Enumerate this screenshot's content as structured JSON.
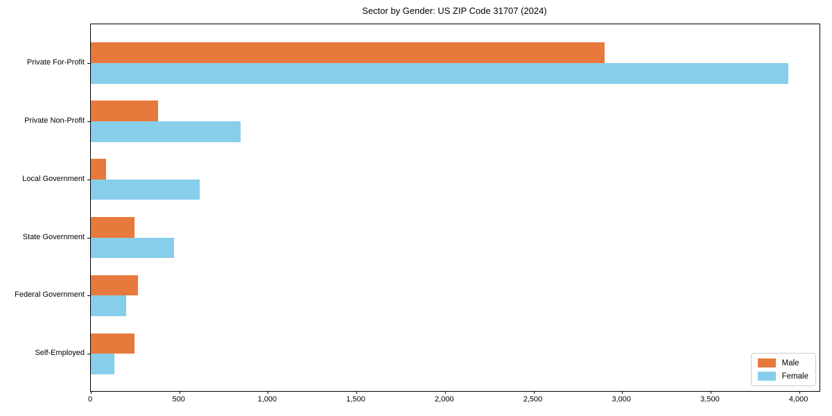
{
  "title": "Sector by Gender: US ZIP Code 31707 (2024)",
  "colors": {
    "male": "#E8793C",
    "female": "#87CEEB",
    "axis": "#000000",
    "legend_border": "#CCCCCC"
  },
  "legend": {
    "items": [
      {
        "label": "Male",
        "color": "#E8793C"
      },
      {
        "label": "Female",
        "color": "#87CEEB"
      }
    ]
  },
  "chart_data": {
    "type": "bar",
    "orientation": "horizontal",
    "title": "Sector by Gender: US ZIP Code 31707 (2024)",
    "categories": [
      "Private For-Profit",
      "Private Non-Profit",
      "Local Government",
      "State Government",
      "Federal Government",
      "Self-Employed"
    ],
    "series": [
      {
        "name": "Male",
        "color": "#E8793C",
        "values": [
          2900,
          380,
          85,
          245,
          265,
          245
        ]
      },
      {
        "name": "Female",
        "color": "#87CEEB",
        "values": [
          3940,
          845,
          615,
          470,
          200,
          135
        ]
      }
    ],
    "xlabel": "",
    "ylabel": "",
    "xlim": [
      0,
      4115
    ],
    "xticks": [
      0,
      500,
      1000,
      1500,
      2000,
      2500,
      3000,
      3500,
      4000
    ],
    "xtick_labels": [
      "0",
      "500",
      "1,000",
      "1,500",
      "2,000",
      "2,500",
      "3,000",
      "3,500",
      "4,000"
    ],
    "grid": false,
    "legend_position": "lower right"
  }
}
